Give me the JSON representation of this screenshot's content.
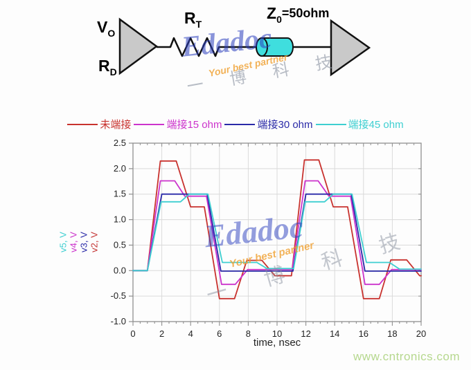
{
  "circuit": {
    "v": {
      "main": "V",
      "sub": "O"
    },
    "rd": {
      "main": "R",
      "sub": "D"
    },
    "rt": {
      "main": "R",
      "sub": "T"
    },
    "z": {
      "main": "Z",
      "sub": "0",
      "rest": "=50ohm"
    }
  },
  "watermark": {
    "brand": "Edadoc",
    "tagline": "Your best partner",
    "cn": "一 博 科 技"
  },
  "footer": {
    "site": "www.cntronics.com"
  },
  "chart_data": {
    "type": "line",
    "title": "",
    "xlabel": "time, nsec",
    "xlim": [
      0,
      20
    ],
    "ylim": [
      -1.0,
      2.5
    ],
    "grid": true,
    "legend_position": "top",
    "xticks": [
      "0",
      "2",
      "4",
      "6",
      "8",
      "10",
      "12",
      "14",
      "16",
      "18",
      "20"
    ],
    "yticks": [
      "2.5",
      "2.0",
      "1.5",
      "1.0",
      "0.5",
      "0.0",
      "-0.5",
      "-1.0"
    ],
    "ylabel_stack": [
      {
        "label": "v5, V",
        "color": "#3ecfd1"
      },
      {
        "label": "v4, V",
        "color": "#cc33cc"
      },
      {
        "label": "v3, V",
        "color": "#2a2aa8"
      },
      {
        "label": "v2, V",
        "color": "#c43434"
      }
    ],
    "series": [
      {
        "label": "未端接",
        "signal": "v2",
        "color": "#c8322e",
        "points": [
          [
            0,
            0
          ],
          [
            1,
            0
          ],
          [
            1.9,
            2.15
          ],
          [
            3.0,
            2.15
          ],
          [
            4.0,
            1.25
          ],
          [
            4.95,
            1.25
          ],
          [
            6.0,
            -0.55
          ],
          [
            7.05,
            -0.55
          ],
          [
            7.9,
            0.2
          ],
          [
            8.95,
            0.2
          ],
          [
            9.85,
            -0.1
          ],
          [
            11.0,
            -0.1
          ],
          [
            11.9,
            2.17
          ],
          [
            12.9,
            2.17
          ],
          [
            13.9,
            1.25
          ],
          [
            14.9,
            1.25
          ],
          [
            16.0,
            -0.55
          ],
          [
            17.1,
            -0.55
          ],
          [
            17.9,
            0.21
          ],
          [
            19.0,
            0.21
          ],
          [
            19.9,
            -0.1
          ],
          [
            20,
            -0.1
          ]
        ]
      },
      {
        "label": "端接15 ohm",
        "signal": "v4",
        "color": "#cc33cc",
        "points": [
          [
            0,
            0
          ],
          [
            1,
            0
          ],
          [
            1.9,
            1.76
          ],
          [
            2.9,
            1.76
          ],
          [
            3.6,
            1.46
          ],
          [
            5.1,
            1.46
          ],
          [
            6.15,
            -0.27
          ],
          [
            7.1,
            -0.27
          ],
          [
            7.95,
            0.02
          ],
          [
            11.05,
            0.02
          ],
          [
            11.95,
            1.76
          ],
          [
            12.85,
            1.76
          ],
          [
            13.6,
            1.46
          ],
          [
            15.1,
            1.46
          ],
          [
            16.1,
            -0.27
          ],
          [
            17.1,
            -0.27
          ],
          [
            17.95,
            0.02
          ],
          [
            20,
            0.02
          ]
        ]
      },
      {
        "label": "端接30 ohm",
        "signal": "v3",
        "color": "#2a2aa8",
        "points": [
          [
            0,
            0
          ],
          [
            1,
            0
          ],
          [
            2.0,
            1.5
          ],
          [
            5.15,
            1.5
          ],
          [
            6.1,
            -0.01
          ],
          [
            11.1,
            -0.01
          ],
          [
            12.0,
            1.5
          ],
          [
            15.15,
            1.5
          ],
          [
            16.1,
            -0.01
          ],
          [
            20,
            -0.01
          ]
        ]
      },
      {
        "label": "端接45 ohm",
        "signal": "v5",
        "color": "#3ecfd1",
        "points": [
          [
            0,
            0
          ],
          [
            1,
            0
          ],
          [
            1.95,
            1.35
          ],
          [
            3.3,
            1.35
          ],
          [
            3.9,
            1.5
          ],
          [
            5.2,
            1.5
          ],
          [
            6.2,
            0.16
          ],
          [
            8.6,
            0.16
          ],
          [
            9.3,
            0.04
          ],
          [
            11.15,
            0.04
          ],
          [
            11.95,
            1.35
          ],
          [
            13.3,
            1.35
          ],
          [
            13.9,
            1.5
          ],
          [
            15.2,
            1.5
          ],
          [
            16.2,
            0.16
          ],
          [
            17.8,
            0.16
          ],
          [
            18.5,
            0.03
          ],
          [
            20,
            0.03
          ]
        ]
      }
    ]
  }
}
